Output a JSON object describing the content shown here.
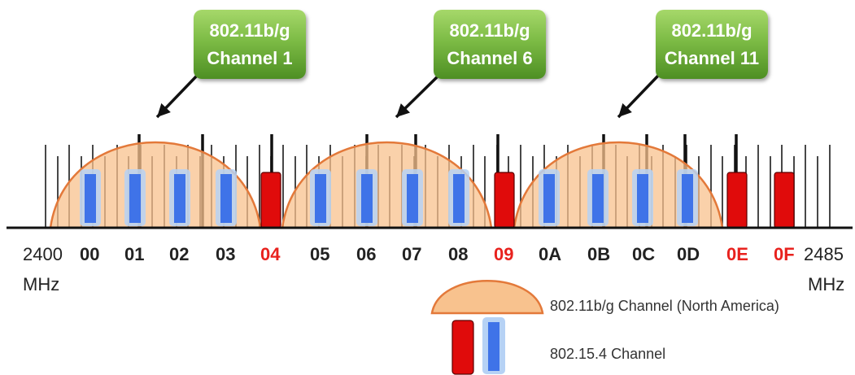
{
  "callouts": [
    {
      "line1": "802.11b/g",
      "line2": "Channel 1"
    },
    {
      "line1": "802.11b/g",
      "line2": "Channel 6"
    },
    {
      "line1": "802.11b/g",
      "line2": "Channel 11"
    }
  ],
  "axis": {
    "start_value": "2400",
    "end_value": "2485",
    "unit": "MHz"
  },
  "channels_15_4": [
    {
      "label": "00",
      "type": "blue"
    },
    {
      "label": "01",
      "type": "blue"
    },
    {
      "label": "02",
      "type": "blue"
    },
    {
      "label": "03",
      "type": "blue"
    },
    {
      "label": "04",
      "type": "red"
    },
    {
      "label": "05",
      "type": "blue"
    },
    {
      "label": "06",
      "type": "blue"
    },
    {
      "label": "07",
      "type": "blue"
    },
    {
      "label": "08",
      "type": "blue"
    },
    {
      "label": "09",
      "type": "red"
    },
    {
      "label": "0A",
      "type": "blue"
    },
    {
      "label": "0B",
      "type": "blue"
    },
    {
      "label": "0C",
      "type": "blue"
    },
    {
      "label": "0D",
      "type": "blue"
    },
    {
      "label": "0E",
      "type": "red"
    },
    {
      "label": "0F",
      "type": "red"
    }
  ],
  "legend": {
    "wifi_label": "802.11b/g Channel (North America)",
    "zigbee_label": "802.15.4 Channel"
  },
  "colors": {
    "blue_channel": "#3f73e8",
    "blue_glow": "#b6d2f5",
    "red_channel": "#e00b0b",
    "arc_fill": "#f8c28e",
    "arc_stroke": "#e3793a",
    "callout_green": "#7cbb45",
    "red_label": "#e8221e"
  }
}
